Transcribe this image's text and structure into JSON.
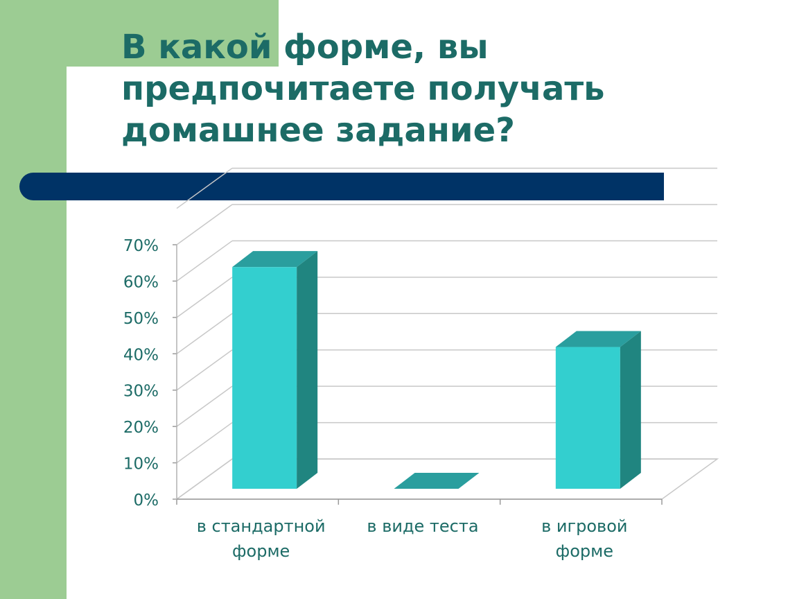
{
  "slide": {
    "title": "В какой форме, вы\nпредпочитаете получать\nдомашнее задание?",
    "colors": {
      "background_green": "#9ccc93",
      "title_text": "#1c6b66",
      "accent_bar": "#003366",
      "bar_front": "#33cfcf",
      "bar_side": "#208580",
      "bar_top": "#2a9e9e",
      "axis_text": "#1c6b66"
    }
  },
  "chart_data": {
    "type": "bar",
    "categories": [
      [
        "в стандартной",
        "форме"
      ],
      [
        "в виде теста"
      ],
      [
        "в игровой",
        "форме"
      ]
    ],
    "values": [
      0.61,
      0.0,
      0.39
    ],
    "yticks": [
      "0%",
      "10%",
      "20%",
      "30%",
      "40%",
      "50%",
      "60%",
      "70%"
    ],
    "ylim": [
      0,
      0.7
    ],
    "grid": true,
    "legend": false
  }
}
